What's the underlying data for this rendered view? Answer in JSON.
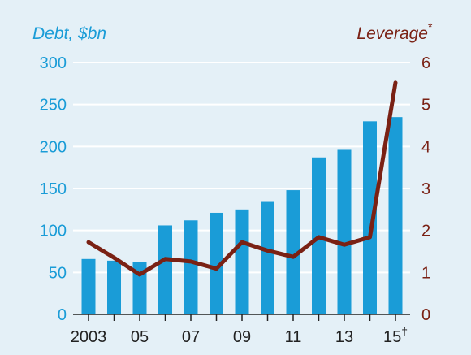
{
  "chart_data": {
    "type": "bar",
    "x_tick_labels": [
      "2003",
      "05",
      "07",
      "09",
      "11",
      "13",
      "15"
    ],
    "x_tick_suffix": "†",
    "left_axis": {
      "title": "Debt, $bn",
      "ticks": [
        "0",
        "50",
        "100",
        "150",
        "200",
        "250",
        "300"
      ],
      "ylim": [
        0,
        300
      ],
      "color": "#1a9cd7"
    },
    "right_axis": {
      "title": "Leverage",
      "title_suffix": "*",
      "ticks": [
        "0",
        "1",
        "2",
        "3",
        "4",
        "5",
        "6"
      ],
      "ylim": [
        0,
        6
      ],
      "color": "#7a2114"
    },
    "years": [
      2003,
      2004,
      2005,
      2006,
      2007,
      2008,
      2009,
      2010,
      2011,
      2012,
      2013,
      2014,
      2015
    ],
    "series": [
      {
        "type": "bar",
        "axis": "left",
        "color": "#1a9cd7",
        "values": [
          66,
          64,
          62,
          106,
          112,
          121,
          125,
          134,
          148,
          187,
          196,
          230,
          235
        ]
      },
      {
        "type": "line",
        "axis": "right",
        "color": "#7a2114",
        "values": [
          1.72,
          1.35,
          0.95,
          1.32,
          1.26,
          1.09,
          1.72,
          1.52,
          1.37,
          1.84,
          1.66,
          1.84,
          5.52
        ]
      }
    ],
    "grid": true,
    "gridline_color": "#ffffff"
  }
}
